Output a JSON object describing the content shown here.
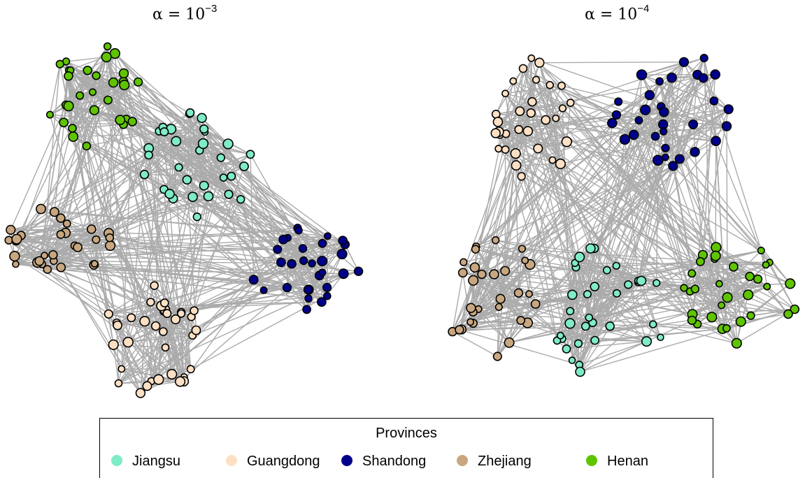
{
  "titles": {
    "left": {
      "prefix": "α = 10",
      "exponent": "−3"
    },
    "right": {
      "prefix": "α = 10",
      "exponent": "−4"
    }
  },
  "legend": {
    "title": "Provinces",
    "items": [
      {
        "label": "Jiangsu",
        "color": "#7FEBC8"
      },
      {
        "label": "Guangdong",
        "color": "#FDE0C4"
      },
      {
        "label": "Shandong",
        "color": "#00008B"
      },
      {
        "label": "Zhejiang",
        "color": "#C8A780"
      },
      {
        "label": "Henan",
        "color": "#5FC400"
      }
    ]
  },
  "colors": {
    "edge": "#ABABAB",
    "node_border": "#000000"
  }
}
